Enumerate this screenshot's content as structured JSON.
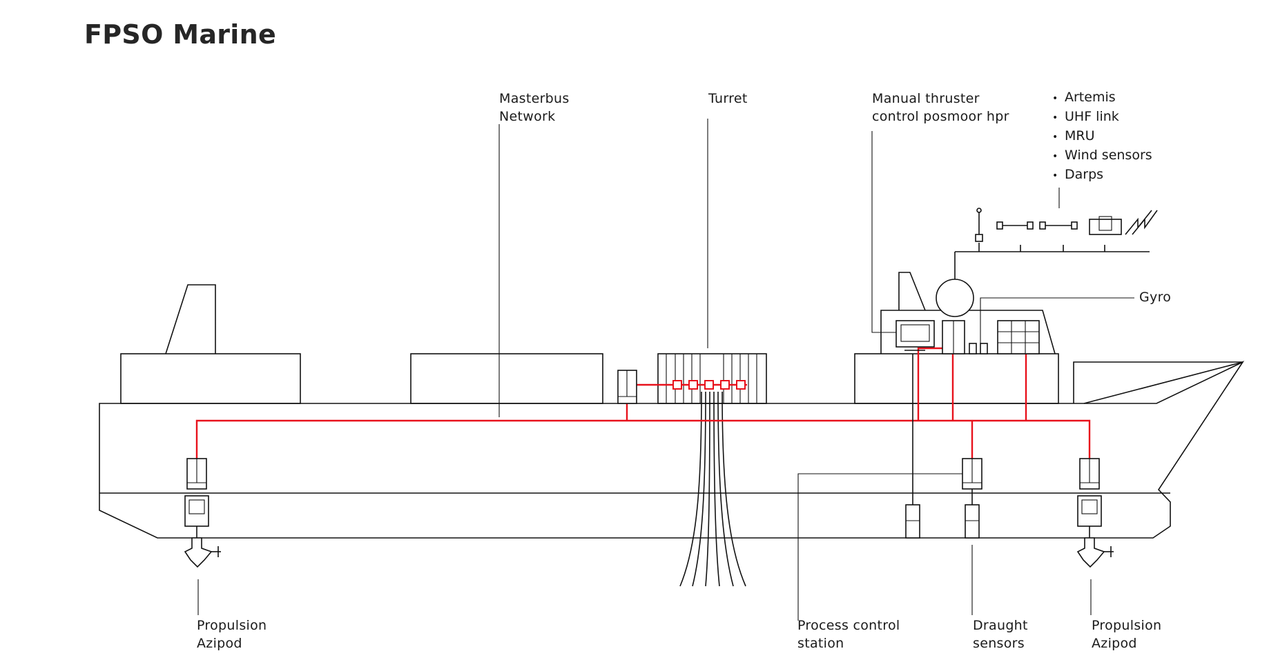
{
  "title": "FPSO Marine",
  "labels": {
    "masterbus": [
      "Masterbus",
      "Network"
    ],
    "turret": "Turret",
    "manual_thruster": [
      "Manual thruster",
      "control posmoor hpr"
    ],
    "gyro": "Gyro",
    "propulsion_left": [
      "Propulsion",
      "Azipod"
    ],
    "process_control": [
      "Process control",
      "station"
    ],
    "draught": [
      "Draught",
      "sensors"
    ],
    "propulsion_right": [
      "Propulsion",
      "Azipod"
    ]
  },
  "sensor_list": [
    "Artemis",
    "UHF link",
    "MRU",
    "Wind sensors",
    "Darps"
  ],
  "colors": {
    "network": "#e8111b",
    "outline": "#111111",
    "text": "#1a1a1a"
  }
}
